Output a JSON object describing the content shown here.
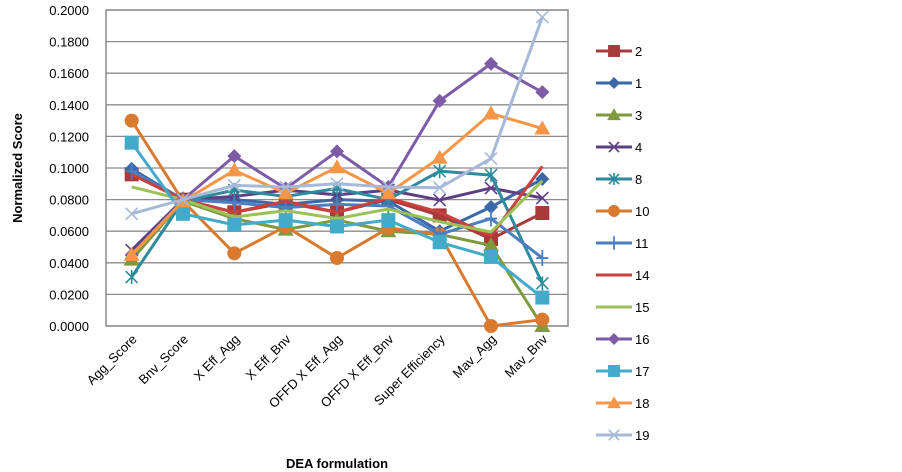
{
  "chart_data": {
    "type": "line",
    "title": "",
    "xlabel": "DEA formulation",
    "ylabel": "Normalized Score",
    "ylim": [
      0,
      0.2
    ],
    "grid": true,
    "legend_position": "right",
    "y_ticks": [
      "0.0000",
      "0.0200",
      "0.0400",
      "0.0600",
      "0.0800",
      "0.1000",
      "0.1200",
      "0.1400",
      "0.1600",
      "0.1800",
      "0.2000"
    ],
    "categories": [
      "Agg_Score",
      "Bnv_Score",
      "X Eff_Agg",
      "X Eff_Bnv",
      "OFFD X Eff_Agg",
      "OFFD X Eff_Bnv",
      "Super Efficiency",
      "Mav_Agg",
      "Mav_Bnv"
    ],
    "series": [
      {
        "name": "2",
        "color": "#A83B3A",
        "marker": "square",
        "values": [
          0.096,
          0.08,
          0.072,
          0.078,
          0.072,
          0.08,
          0.07,
          0.055,
          0.0715
        ]
      },
      {
        "name": "1",
        "color": "#3A68A8",
        "marker": "diamond",
        "values": [
          0.0995,
          0.08,
          0.08,
          0.077,
          0.08,
          0.079,
          0.06,
          0.0753,
          0.093
        ]
      },
      {
        "name": "3",
        "color": "#7E9A3C",
        "marker": "triangle",
        "values": [
          0.042,
          0.079,
          0.068,
          0.061,
          0.067,
          0.06,
          0.058,
          0.051,
          0.0
        ]
      },
      {
        "name": "4",
        "color": "#5E3F82",
        "marker": "x",
        "values": [
          0.048,
          0.08,
          0.082,
          0.086,
          0.083,
          0.086,
          0.0797,
          0.0873,
          0.081
        ]
      },
      {
        "name": "8",
        "color": "#2E8B9E",
        "marker": "star",
        "values": [
          0.031,
          0.079,
          0.086,
          0.082,
          0.087,
          0.08,
          0.098,
          0.0955,
          0.027
        ]
      },
      {
        "name": "10",
        "color": "#D97A2E",
        "marker": "circle",
        "values": [
          0.13,
          0.079,
          0.046,
          0.063,
          0.043,
          0.062,
          0.058,
          0.0,
          0.004
        ]
      },
      {
        "name": "11",
        "color": "#4A7FC1",
        "marker": "plus",
        "values": [
          0.098,
          0.08,
          0.078,
          0.075,
          0.077,
          0.076,
          0.058,
          0.068,
          0.043
        ]
      },
      {
        "name": "14",
        "color": "#C9403D",
        "marker": "none",
        "values": [
          0.096,
          0.08,
          0.072,
          0.079,
          0.072,
          0.081,
          0.072,
          0.057,
          0.101
        ]
      },
      {
        "name": "15",
        "color": "#9BC257",
        "marker": "none",
        "values": [
          0.088,
          0.08,
          0.069,
          0.073,
          0.068,
          0.074,
          0.066,
          0.0595,
          0.092
        ]
      },
      {
        "name": "16",
        "color": "#7D5BA6",
        "marker": "diamond",
        "values": [
          0.045,
          0.08,
          0.1075,
          0.087,
          0.1105,
          0.088,
          0.1425,
          0.166,
          0.148
        ]
      },
      {
        "name": "17",
        "color": "#44AAC9",
        "marker": "square",
        "values": [
          0.116,
          0.071,
          0.064,
          0.067,
          0.063,
          0.067,
          0.053,
          0.0437,
          0.018
        ]
      },
      {
        "name": "18",
        "color": "#F79646",
        "marker": "triangle",
        "values": [
          0.045,
          0.079,
          0.0985,
          0.084,
          0.1005,
          0.084,
          0.1065,
          0.1345,
          0.125
        ]
      },
      {
        "name": "19",
        "color": "#A6B9D9",
        "marker": "x",
        "values": [
          0.071,
          0.08,
          0.089,
          0.088,
          0.09,
          0.088,
          0.0875,
          0.106,
          0.1955
        ]
      }
    ]
  }
}
